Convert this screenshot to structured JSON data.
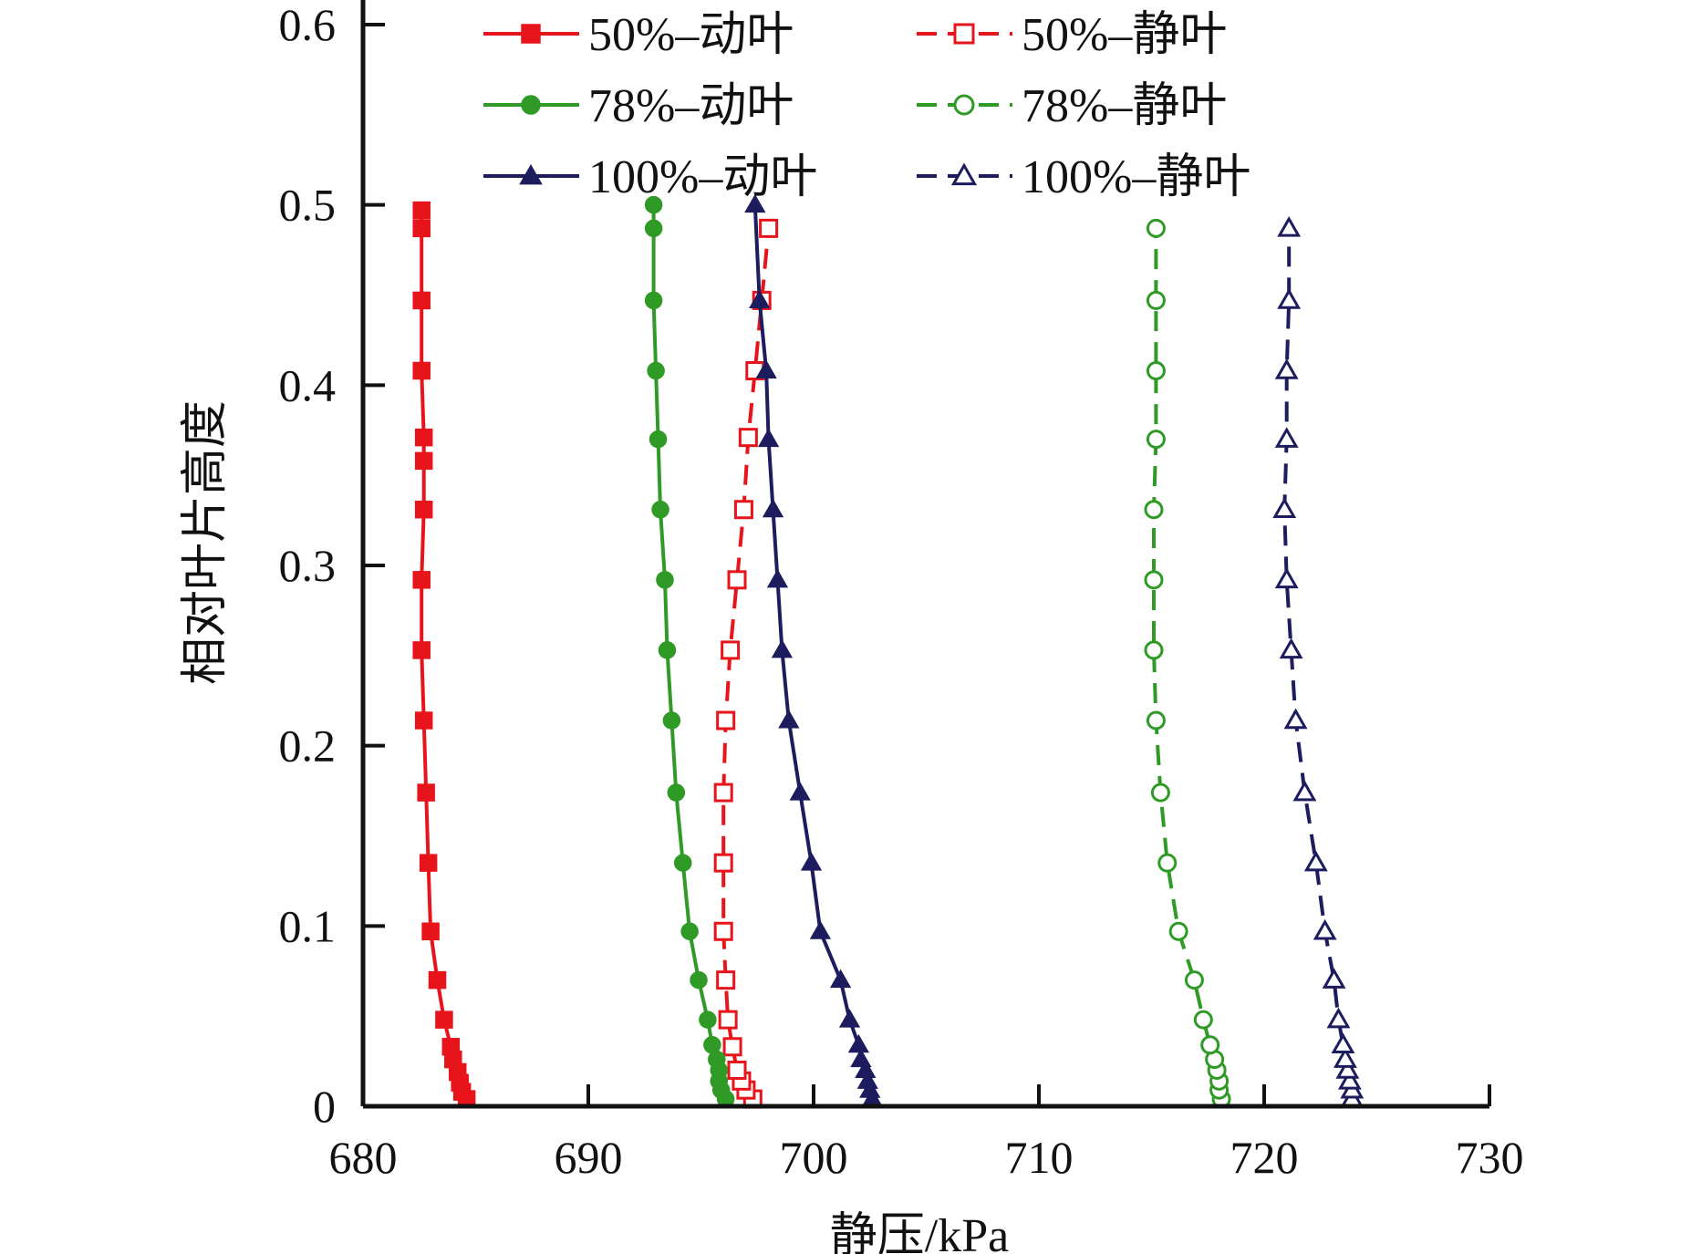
{
  "chart_data": {
    "type": "line",
    "title": "",
    "xlabel": "静压/kPa",
    "ylabel": "相对叶片高度",
    "xlim": [
      680,
      730
    ],
    "ylim": [
      0,
      0.6
    ],
    "xticks": [
      680,
      690,
      700,
      710,
      720,
      730
    ],
    "yticks": [
      0,
      0.1,
      0.2,
      0.3,
      0.4,
      0.5,
      0.6
    ],
    "xtick_labels": [
      "680",
      "690",
      "700",
      "710",
      "720",
      "730"
    ],
    "ytick_labels": [
      "0",
      "0.1",
      "0.2",
      "0.3",
      "0.4",
      "0.5",
      "0.6"
    ],
    "legend_position": "top",
    "series": [
      {
        "name": "50%-动叶",
        "color": "#e8141b",
        "dash": "solid",
        "marker": "square",
        "filled": true,
        "points": [
          [
            684.6,
            0.004
          ],
          [
            684.4,
            0.008
          ],
          [
            684.3,
            0.013
          ],
          [
            684.2,
            0.019
          ],
          [
            684.0,
            0.026
          ],
          [
            683.9,
            0.033
          ],
          [
            683.6,
            0.048
          ],
          [
            683.3,
            0.07
          ],
          [
            683.0,
            0.097
          ],
          [
            682.9,
            0.135
          ],
          [
            682.8,
            0.174
          ],
          [
            682.7,
            0.214
          ],
          [
            682.6,
            0.253
          ],
          [
            682.6,
            0.292
          ],
          [
            682.7,
            0.331
          ],
          [
            682.7,
            0.358
          ],
          [
            682.7,
            0.371
          ],
          [
            682.6,
            0.408
          ],
          [
            682.6,
            0.447
          ],
          [
            682.6,
            0.487
          ],
          [
            682.6,
            0.497
          ]
        ]
      },
      {
        "name": "50%-静叶",
        "color": "#e8141b",
        "dash": "dashed",
        "marker": "square",
        "filled": false,
        "points": [
          [
            697.3,
            0.004
          ],
          [
            697.0,
            0.009
          ],
          [
            696.8,
            0.014
          ],
          [
            696.6,
            0.02
          ],
          [
            696.4,
            0.033
          ],
          [
            696.2,
            0.048
          ],
          [
            696.1,
            0.07
          ],
          [
            696.0,
            0.097
          ],
          [
            696.0,
            0.135
          ],
          [
            696.0,
            0.174
          ],
          [
            696.1,
            0.214
          ],
          [
            696.3,
            0.253
          ],
          [
            696.6,
            0.292
          ],
          [
            696.9,
            0.331
          ],
          [
            697.1,
            0.371
          ],
          [
            697.4,
            0.408
          ],
          [
            697.7,
            0.447
          ],
          [
            698.0,
            0.487
          ]
        ]
      },
      {
        "name": "78%-动叶",
        "color": "#2f9a26",
        "dash": "solid",
        "marker": "circle",
        "filled": true,
        "points": [
          [
            696.1,
            0.004
          ],
          [
            695.9,
            0.009
          ],
          [
            695.8,
            0.014
          ],
          [
            695.8,
            0.02
          ],
          [
            695.7,
            0.026
          ],
          [
            695.5,
            0.034
          ],
          [
            695.3,
            0.048
          ],
          [
            694.9,
            0.07
          ],
          [
            694.5,
            0.097
          ],
          [
            694.2,
            0.135
          ],
          [
            693.9,
            0.174
          ],
          [
            693.7,
            0.214
          ],
          [
            693.5,
            0.253
          ],
          [
            693.4,
            0.292
          ],
          [
            693.2,
            0.331
          ],
          [
            693.1,
            0.37
          ],
          [
            693.0,
            0.408
          ],
          [
            692.9,
            0.447
          ],
          [
            692.9,
            0.487
          ],
          [
            692.9,
            0.5
          ]
        ]
      },
      {
        "name": "78%-静叶",
        "color": "#2f9a26",
        "dash": "dashed",
        "marker": "circle",
        "filled": false,
        "points": [
          [
            718.1,
            0.004
          ],
          [
            718.0,
            0.009
          ],
          [
            718.0,
            0.014
          ],
          [
            717.9,
            0.02
          ],
          [
            717.8,
            0.026
          ],
          [
            717.6,
            0.034
          ],
          [
            717.3,
            0.048
          ],
          [
            716.9,
            0.07
          ],
          [
            716.2,
            0.097
          ],
          [
            715.7,
            0.135
          ],
          [
            715.4,
            0.174
          ],
          [
            715.2,
            0.214
          ],
          [
            715.1,
            0.253
          ],
          [
            715.1,
            0.292
          ],
          [
            715.1,
            0.331
          ],
          [
            715.2,
            0.37
          ],
          [
            715.2,
            0.408
          ],
          [
            715.2,
            0.447
          ],
          [
            715.2,
            0.487
          ]
        ]
      },
      {
        "name": "100%-动叶",
        "color": "#1c1c5e",
        "dash": "solid",
        "marker": "triangle",
        "filled": true,
        "points": [
          [
            702.6,
            0.004
          ],
          [
            702.5,
            0.009
          ],
          [
            702.4,
            0.014
          ],
          [
            702.3,
            0.02
          ],
          [
            702.1,
            0.026
          ],
          [
            702.0,
            0.034
          ],
          [
            701.6,
            0.048
          ],
          [
            701.2,
            0.07
          ],
          [
            700.3,
            0.097
          ],
          [
            699.9,
            0.135
          ],
          [
            699.4,
            0.174
          ],
          [
            698.9,
            0.214
          ],
          [
            698.6,
            0.253
          ],
          [
            698.4,
            0.292
          ],
          [
            698.2,
            0.331
          ],
          [
            698.0,
            0.37
          ],
          [
            697.9,
            0.408
          ],
          [
            697.6,
            0.447
          ],
          [
            697.4,
            0.5
          ]
        ]
      },
      {
        "name": "100%-静叶",
        "color": "#1c1c5e",
        "dash": "dashed",
        "marker": "triangle",
        "filled": false,
        "points": [
          [
            723.9,
            0.004
          ],
          [
            723.9,
            0.009
          ],
          [
            723.8,
            0.014
          ],
          [
            723.7,
            0.02
          ],
          [
            723.6,
            0.026
          ],
          [
            723.5,
            0.034
          ],
          [
            723.3,
            0.048
          ],
          [
            723.1,
            0.07
          ],
          [
            722.7,
            0.097
          ],
          [
            722.3,
            0.135
          ],
          [
            721.8,
            0.174
          ],
          [
            721.4,
            0.214
          ],
          [
            721.2,
            0.253
          ],
          [
            721.0,
            0.292
          ],
          [
            720.9,
            0.331
          ],
          [
            721.0,
            0.37
          ],
          [
            721.0,
            0.408
          ],
          [
            721.1,
            0.447
          ],
          [
            721.1,
            0.487
          ]
        ]
      }
    ],
    "legend": [
      {
        "label": "50%–动叶",
        "series": 0
      },
      {
        "label": "50%–静叶",
        "series": 1
      },
      {
        "label": "78%–动叶",
        "series": 2
      },
      {
        "label": "78%–静叶",
        "series": 3
      },
      {
        "label": "100%–动叶",
        "series": 4
      },
      {
        "label": "100%–静叶",
        "series": 5
      }
    ]
  }
}
